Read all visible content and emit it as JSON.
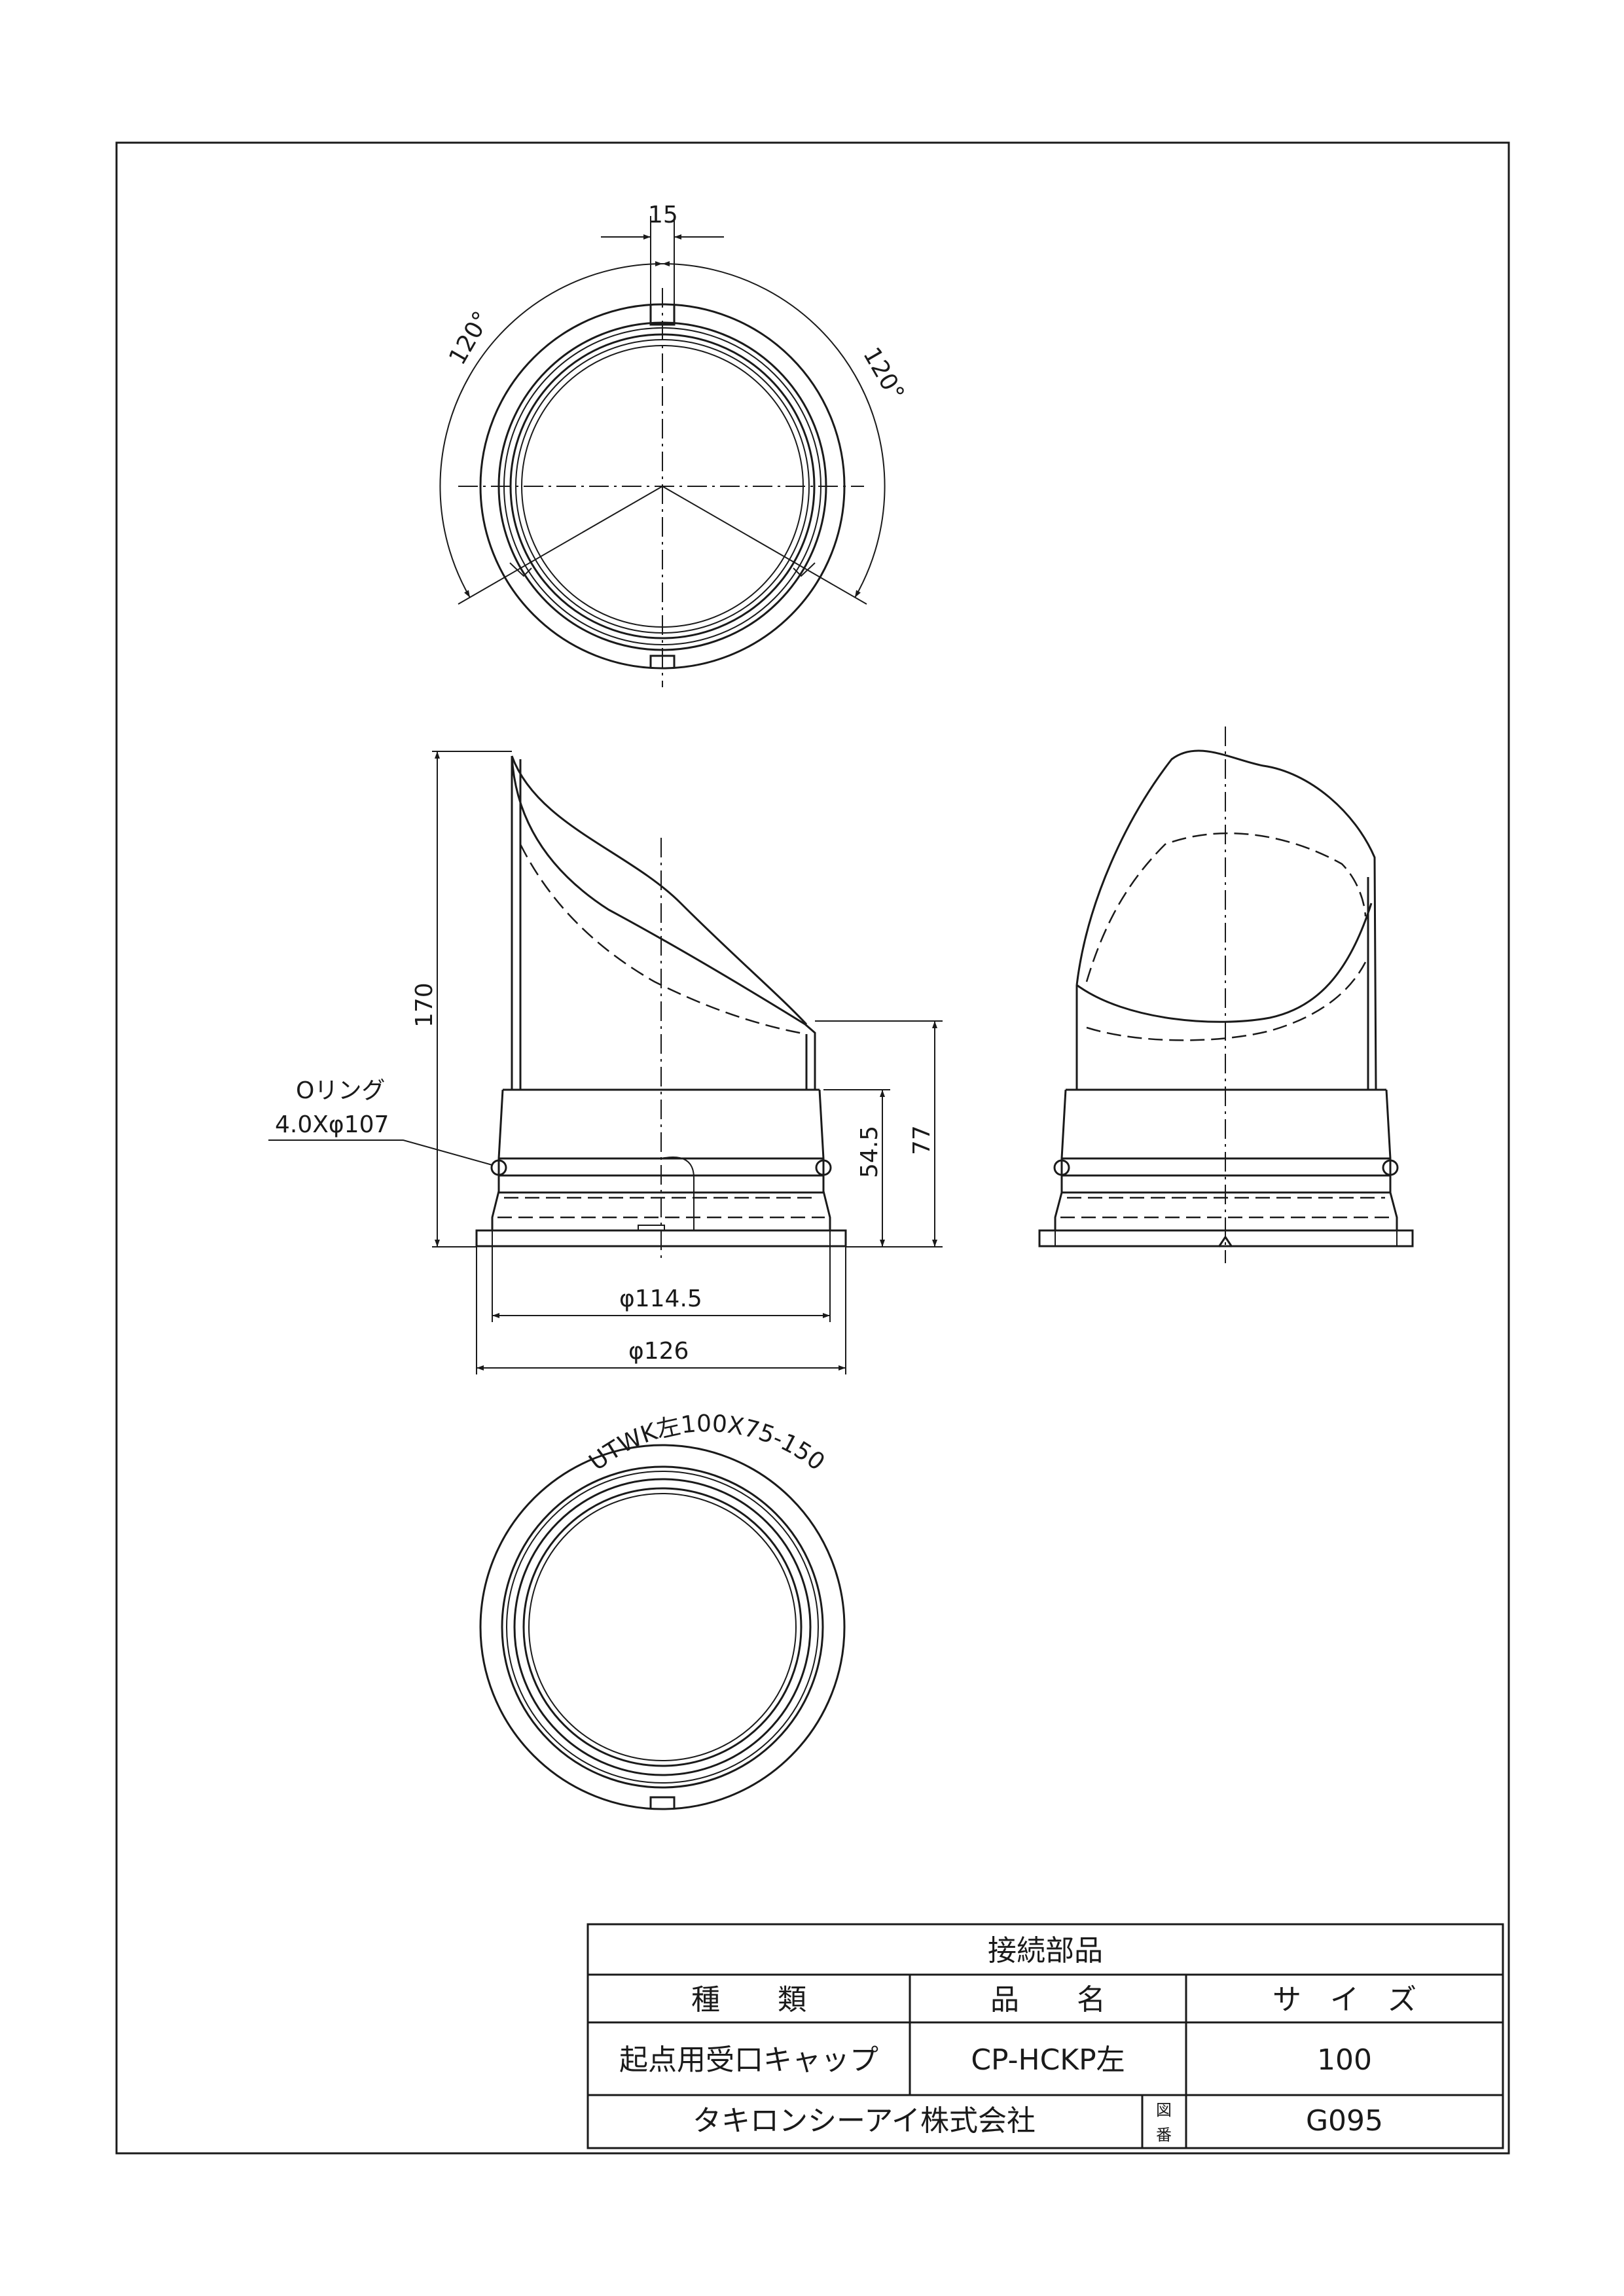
{
  "dimensions": {
    "top_slot_width": "15",
    "angle_left": "120°",
    "angle_right": "120°",
    "height_total": "170",
    "height_77": "77",
    "height_54_5": "54.5",
    "oring_label_1": "Oリング",
    "oring_label_2": "4.0Xφ107",
    "dia_114_5": "φ114.5",
    "dia_126": "φ126"
  },
  "bottom_view": {
    "marking": "UTWK左100X75-150"
  },
  "title_block": {
    "header": "接続部品",
    "col_type": "種　　類",
    "col_name": "品　　名",
    "col_size": "サ　イ　ズ",
    "type_value": "起点用受口キャップ",
    "name_value": "CP-HCKP左",
    "size_value": "100",
    "company": "タキロンシーアイ株式会社",
    "drawing_no_label_1": "図",
    "drawing_no_label_2": "番",
    "drawing_no": "G095"
  }
}
